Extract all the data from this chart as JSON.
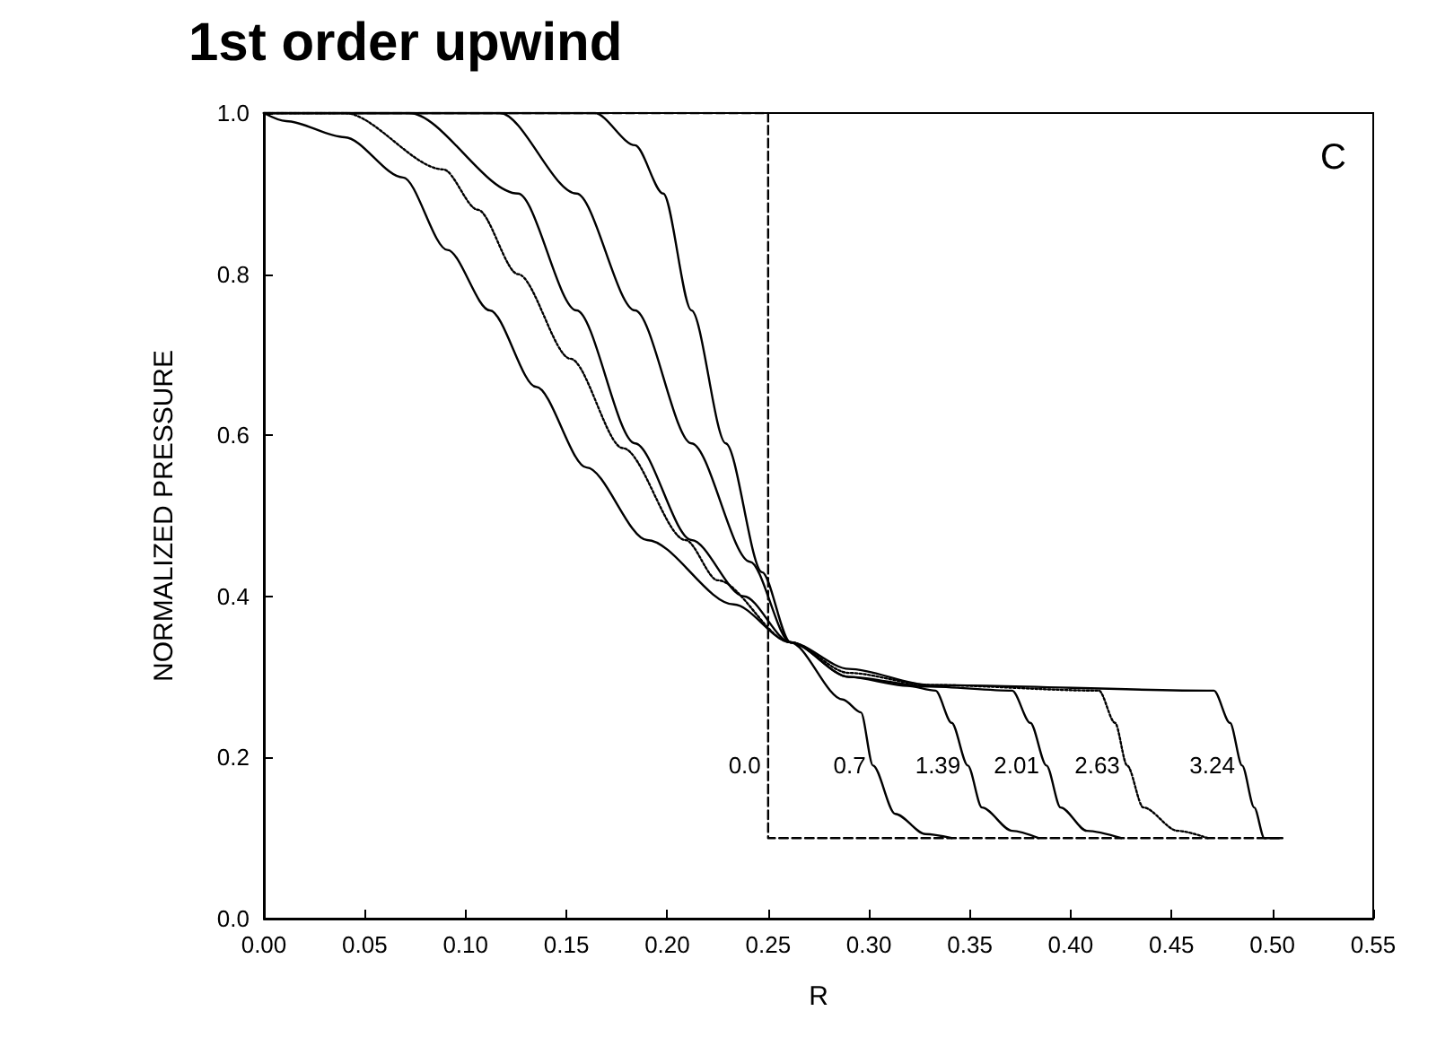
{
  "chart_data": {
    "type": "line",
    "title": "1st order upwind",
    "xlabel": "R",
    "ylabel": "NORMALIZED PRESSURE",
    "annotations": [
      "C"
    ],
    "xlim": [
      0,
      0.55
    ],
    "ylim": [
      0,
      1.0
    ],
    "xticks": [
      {
        "value": 0,
        "label": "0.00"
      },
      {
        "value": 0.05,
        "label": "0.05"
      },
      {
        "value": 0.1,
        "label": "0.10"
      },
      {
        "value": 0.15,
        "label": "0.15"
      },
      {
        "value": 0.2,
        "label": "0.20"
      },
      {
        "value": 0.25,
        "label": "0.25"
      },
      {
        "value": 0.3,
        "label": "0.30"
      },
      {
        "value": 0.35,
        "label": "0.35"
      },
      {
        "value": 0.4,
        "label": "0.40"
      },
      {
        "value": 0.45,
        "label": "0.45"
      },
      {
        "value": 0.5,
        "label": "0.50"
      },
      {
        "value": 0.55,
        "label": "0.55"
      }
    ],
    "yticks": [
      {
        "value": 0,
        "label": "0.0"
      },
      {
        "value": 0.2,
        "label": "0.2"
      },
      {
        "value": 0.4,
        "label": "0.4"
      },
      {
        "value": 0.6,
        "label": "0.6"
      },
      {
        "value": 0.8,
        "label": "0.8"
      },
      {
        "value": 1.0,
        "label": "1.0"
      }
    ],
    "grid": false,
    "marker": "none",
    "series": [
      {
        "name": "0.0",
        "color": "#000000",
        "line_style": "dashed",
        "x": [
          0,
          0.25,
          0.25,
          0.25,
          0.505
        ],
        "values": [
          1.0,
          1.0,
          0.19,
          0.1,
          0.1
        ]
      },
      {
        "name": "0.7",
        "color": "#000000",
        "line_style": "solid",
        "x": [
          0,
          0.164,
          0.184,
          0.198,
          0.212,
          0.229,
          0.247,
          0.261,
          0.287,
          0.296,
          0.302,
          0.313,
          0.328,
          0.341
        ],
        "values": [
          1.0,
          1.0,
          0.96,
          0.9,
          0.755,
          0.59,
          0.43,
          0.343,
          0.272,
          0.256,
          0.19,
          0.13,
          0.105,
          0.1
        ]
      },
      {
        "name": "1.39",
        "color": "#000000",
        "line_style": "solid",
        "x": [
          0,
          0.117,
          0.155,
          0.184,
          0.212,
          0.241,
          0.261,
          0.29,
          0.319,
          0.333,
          0.341,
          0.349,
          0.356,
          0.371,
          0.384
        ],
        "values": [
          1.0,
          1.0,
          0.9,
          0.755,
          0.59,
          0.443,
          0.343,
          0.3,
          0.289,
          0.283,
          0.243,
          0.19,
          0.138,
          0.109,
          0.1
        ]
      },
      {
        "name": "2.01",
        "color": "#000000",
        "line_style": "solid",
        "x": [
          0,
          0.072,
          0.126,
          0.155,
          0.184,
          0.212,
          0.238,
          0.261,
          0.29,
          0.33,
          0.371,
          0.38,
          0.388,
          0.395,
          0.408,
          0.425
        ],
        "values": [
          1.0,
          1.0,
          0.9,
          0.755,
          0.59,
          0.47,
          0.4,
          0.343,
          0.3,
          0.288,
          0.283,
          0.243,
          0.19,
          0.138,
          0.109,
          0.1
        ]
      },
      {
        "name": "2.63",
        "color": "#000000",
        "line_style": "dotted",
        "x": [
          0,
          0.04,
          0.089,
          0.106,
          0.126,
          0.152,
          0.178,
          0.209,
          0.225,
          0.261,
          0.29,
          0.33,
          0.414,
          0.422,
          0.428,
          0.436,
          0.453,
          0.468
        ],
        "values": [
          1.0,
          1.0,
          0.93,
          0.88,
          0.8,
          0.695,
          0.584,
          0.47,
          0.42,
          0.343,
          0.305,
          0.29,
          0.283,
          0.243,
          0.19,
          0.138,
          0.109,
          0.1
        ]
      },
      {
        "name": "3.24",
        "color": "#000000",
        "line_style": "solid",
        "x": [
          0,
          0.011,
          0.04,
          0.069,
          0.091,
          0.112,
          0.135,
          0.16,
          0.19,
          0.233,
          0.261,
          0.29,
          0.33,
          0.471,
          0.479,
          0.485,
          0.491,
          0.496,
          0.505
        ],
        "values": [
          1.0,
          0.99,
          0.97,
          0.92,
          0.83,
          0.755,
          0.66,
          0.56,
          0.47,
          0.39,
          0.343,
          0.31,
          0.29,
          0.283,
          0.243,
          0.19,
          0.138,
          0.1,
          0.1
        ]
      }
    ]
  }
}
